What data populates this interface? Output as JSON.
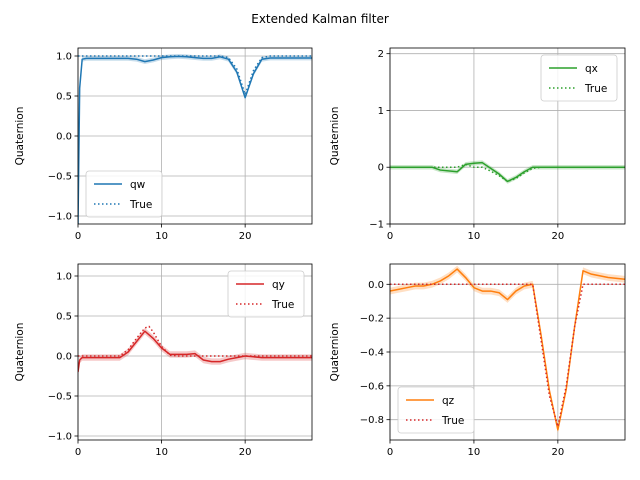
{
  "figure": {
    "title": "Extended Kalman filter"
  },
  "chart_data": [
    {
      "type": "line",
      "id": "qw",
      "ylabel": "Quaternion",
      "xlim": [
        0,
        28
      ],
      "ylim": [
        -1.1,
        1.1
      ],
      "xticks": [
        0,
        10,
        20
      ],
      "yticks": [
        1.0,
        0.5,
        0.0,
        -0.5,
        -1.0
      ],
      "ytick_labels": [
        "1.0",
        "0.5",
        "0.0",
        "−0.5",
        "−1.0"
      ],
      "grid": true,
      "legend_loc": "lower-left",
      "series": [
        {
          "name": "qw",
          "style": "solid",
          "color": "#1f77b4",
          "band": 0.03,
          "x": [
            0,
            0.2,
            0.5,
            1,
            2,
            4,
            6,
            7,
            8,
            9,
            10,
            11,
            12,
            13,
            14,
            15,
            16,
            17,
            18,
            19,
            20,
            21,
            22,
            23,
            24,
            26,
            28
          ],
          "y": [
            -1.1,
            0.6,
            0.96,
            0.97,
            0.97,
            0.97,
            0.97,
            0.96,
            0.93,
            0.95,
            0.98,
            0.99,
            0.995,
            0.99,
            0.98,
            0.97,
            0.97,
            0.99,
            0.96,
            0.8,
            0.48,
            0.78,
            0.96,
            0.975,
            0.975,
            0.975,
            0.975
          ]
        },
        {
          "name": "True",
          "style": "dotted",
          "color": "#1f77b4",
          "band": 0,
          "x": [
            0,
            8,
            10,
            12,
            16,
            17,
            18,
            19,
            20,
            21,
            22,
            23,
            28
          ],
          "y": [
            1.0,
            1.0,
            1.0,
            1.0,
            1.0,
            1.0,
            0.98,
            0.84,
            0.52,
            0.82,
            0.98,
            1.0,
            1.0
          ]
        }
      ]
    },
    {
      "type": "line",
      "id": "qx",
      "ylabel": "Quaternion",
      "xlim": [
        0,
        28
      ],
      "ylim": [
        -1.0,
        2.1
      ],
      "xticks": [
        0,
        10,
        20
      ],
      "yticks": [
        2,
        1,
        0,
        -1
      ],
      "ytick_labels": [
        "2",
        "1",
        "0",
        "−1"
      ],
      "grid": true,
      "legend_loc": "upper-right",
      "series": [
        {
          "name": "qx",
          "style": "solid",
          "color": "#2ca02c",
          "band": 0.04,
          "x": [
            0,
            0.3,
            1,
            3,
            5,
            6,
            8,
            9,
            10,
            11,
            12,
            13,
            14,
            15,
            16,
            17,
            18,
            20,
            22,
            24,
            26,
            28
          ],
          "y": [
            0.0,
            0.0,
            0.0,
            0.0,
            0.0,
            -0.05,
            -0.08,
            0.05,
            0.07,
            0.08,
            -0.02,
            -0.12,
            -0.25,
            -0.18,
            -0.08,
            0.0,
            0.0,
            0.0,
            0.0,
            0.0,
            0.0,
            0.0
          ]
        },
        {
          "name": "True",
          "style": "dotted",
          "color": "#2ca02c",
          "band": 0,
          "x": [
            0,
            5,
            8,
            9,
            10,
            11,
            12,
            13,
            14,
            15,
            16,
            17,
            18,
            28
          ],
          "y": [
            0.0,
            0.0,
            0.0,
            0.05,
            0.0,
            0.0,
            -0.07,
            -0.15,
            -0.25,
            -0.2,
            -0.1,
            -0.02,
            0.0,
            0.0
          ]
        }
      ]
    },
    {
      "type": "line",
      "id": "qy",
      "ylabel": "Quaternion",
      "xlim": [
        0,
        28
      ],
      "ylim": [
        -1.05,
        1.15
      ],
      "xticks": [
        0,
        10,
        20
      ],
      "yticks": [
        1.0,
        0.5,
        0.0,
        -0.5,
        -1.0
      ],
      "ytick_labels": [
        "1.0",
        "0.5",
        "0.0",
        "−0.5",
        "−1.0"
      ],
      "grid": true,
      "legend_loc": "upper-right",
      "series": [
        {
          "name": "qy",
          "style": "solid",
          "color": "#d62728",
          "band": 0.04,
          "x": [
            0,
            0.2,
            0.5,
            1,
            3,
            5,
            6,
            7,
            8,
            9,
            10,
            11,
            12,
            13,
            14,
            15,
            16,
            17,
            18,
            19,
            20,
            21,
            22,
            24,
            26,
            28
          ],
          "y": [
            -0.2,
            -0.05,
            -0.02,
            -0.02,
            -0.02,
            -0.02,
            0.05,
            0.18,
            0.31,
            0.22,
            0.1,
            0.02,
            0.02,
            0.02,
            0.03,
            -0.05,
            -0.07,
            -0.07,
            -0.04,
            -0.02,
            0.0,
            -0.01,
            -0.02,
            -0.02,
            -0.02,
            -0.02
          ]
        },
        {
          "name": "True",
          "style": "dotted",
          "color": "#d62728",
          "band": 0,
          "x": [
            0,
            5,
            6,
            7,
            8,
            8.5,
            9,
            10,
            11,
            12,
            14,
            16,
            28
          ],
          "y": [
            0.0,
            0.0,
            0.08,
            0.22,
            0.35,
            0.37,
            0.3,
            0.12,
            0.01,
            0.0,
            0.0,
            0.0,
            0.0
          ]
        }
      ]
    },
    {
      "type": "line",
      "id": "qz",
      "ylabel": "Quaternion",
      "xlim": [
        0,
        28
      ],
      "ylim": [
        -0.92,
        0.12
      ],
      "xticks": [
        0,
        10,
        20
      ],
      "yticks": [
        0.0,
        -0.2,
        -0.4,
        -0.6,
        -0.8
      ],
      "ytick_labels": [
        "0.0",
        "−0.2",
        "−0.4",
        "−0.6",
        "−0.8"
      ],
      "grid": true,
      "legend_loc": "lower-left",
      "series": [
        {
          "name": "qz",
          "style": "solid",
          "color": "#ff7f0e",
          "band": 0.02,
          "x": [
            0,
            1,
            2,
            3,
            4,
            5,
            6,
            7,
            8,
            9,
            10,
            11,
            12,
            13,
            14,
            15,
            16,
            17,
            18,
            19,
            20,
            21,
            22,
            23,
            24,
            26,
            28
          ],
          "y": [
            -0.04,
            -0.03,
            -0.02,
            -0.01,
            -0.01,
            0.0,
            0.02,
            0.05,
            0.09,
            0.04,
            -0.02,
            -0.04,
            -0.04,
            -0.05,
            -0.09,
            -0.04,
            -0.01,
            0.0,
            -0.3,
            -0.63,
            -0.86,
            -0.62,
            -0.25,
            0.08,
            0.06,
            0.04,
            0.03
          ]
        },
        {
          "name": "True",
          "style": "dotted",
          "color": "#d62728",
          "band": 0,
          "x": [
            0,
            5,
            10,
            15,
            17,
            18,
            19,
            20,
            21,
            22,
            23,
            24,
            28
          ],
          "y": [
            0.0,
            0.0,
            0.0,
            0.0,
            0.0,
            -0.33,
            -0.66,
            -0.84,
            -0.6,
            -0.25,
            0.0,
            0.0,
            0.0
          ]
        }
      ]
    }
  ]
}
